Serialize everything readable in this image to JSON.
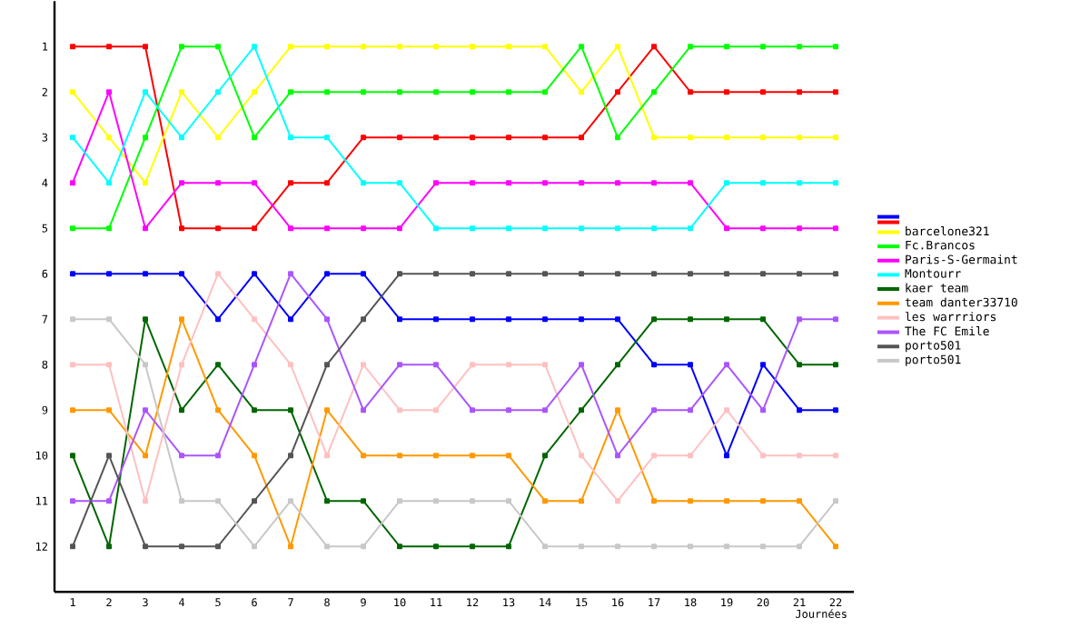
{
  "chart_data": {
    "type": "line",
    "xlabel": "Journées",
    "x": [
      1,
      2,
      3,
      4,
      5,
      6,
      7,
      8,
      9,
      10,
      11,
      12,
      13,
      14,
      15,
      16,
      17,
      18,
      19,
      20,
      21,
      22
    ],
    "xlim": [
      0.5,
      22.5
    ],
    "xticks": [
      1,
      2,
      3,
      4,
      5,
      6,
      7,
      8,
      9,
      10,
      11,
      12,
      13,
      14,
      15,
      16,
      17,
      18,
      19,
      20,
      21,
      22
    ],
    "ylim": [
      13,
      0
    ],
    "yticks": [
      1,
      2,
      3,
      4,
      5,
      6,
      7,
      8,
      9,
      10,
      11,
      12
    ],
    "legend": "right",
    "marker": "square",
    "line_style": "solid",
    "series": [
      {
        "color": "#0000ff",
        "values": [
          6,
          6,
          6,
          6,
          7,
          6,
          7,
          6,
          6,
          7,
          7,
          7,
          7,
          7,
          7,
          7,
          8,
          8,
          10,
          8,
          9,
          9
        ]
      },
      {
        "color": "#ff0000",
        "values": [
          1,
          1,
          1,
          5,
          5,
          5,
          4,
          4,
          3,
          3,
          3,
          3,
          3,
          3,
          3,
          2,
          1,
          2,
          2,
          2,
          2,
          2
        ]
      },
      {
        "name": "barcelone321",
        "color": "#ffff00",
        "values": [
          2,
          3,
          4,
          2,
          3,
          2,
          1,
          1,
          1,
          1,
          1,
          1,
          1,
          1,
          2,
          1,
          3,
          3,
          3,
          3,
          3,
          3
        ]
      },
      {
        "name": "Fc.Brancos",
        "color": "#00ff00",
        "values": [
          5,
          5,
          3,
          1,
          1,
          3,
          2,
          2,
          2,
          2,
          2,
          2,
          2,
          2,
          1,
          3,
          2,
          1,
          1,
          1,
          1,
          1
        ]
      },
      {
        "name": "Paris-S-Germaint",
        "color": "#ff00ff",
        "values": [
          4,
          2,
          5,
          4,
          4,
          4,
          5,
          5,
          5,
          5,
          4,
          4,
          4,
          4,
          4,
          4,
          4,
          4,
          5,
          5,
          5,
          5
        ]
      },
      {
        "name": "Montourr",
        "color": "#00ffff",
        "values": [
          3,
          4,
          2,
          3,
          2,
          1,
          3,
          3,
          4,
          4,
          5,
          5,
          5,
          5,
          5,
          5,
          5,
          5,
          4,
          4,
          4,
          4
        ]
      },
      {
        "name": "kaer team",
        "color": "#006600",
        "values": [
          10,
          12,
          7,
          9,
          8,
          9,
          9,
          11,
          11,
          12,
          12,
          12,
          12,
          10,
          9,
          8,
          7,
          7,
          7,
          7,
          8,
          8
        ]
      },
      {
        "name": "team danter33710",
        "color": "#ff9900",
        "values": [
          9,
          9,
          10,
          7,
          9,
          10,
          12,
          9,
          10,
          10,
          10,
          10,
          10,
          11,
          11,
          9,
          11,
          11,
          11,
          11,
          11,
          12
        ]
      },
      {
        "name": "les warrriors",
        "color": "#ffc0c0",
        "values": [
          8,
          8,
          11,
          8,
          6,
          7,
          8,
          10,
          8,
          9,
          9,
          8,
          8,
          8,
          10,
          11,
          10,
          10,
          9,
          10,
          10,
          10
        ]
      },
      {
        "name": "The FC Emile",
        "color": "#aa55ff",
        "values": [
          11,
          11,
          9,
          10,
          10,
          8,
          6,
          7,
          9,
          8,
          8,
          9,
          9,
          9,
          8,
          10,
          9,
          9,
          8,
          9,
          7,
          7
        ]
      },
      {
        "name": "porto501",
        "color": "#555555",
        "values": [
          12,
          10,
          12,
          12,
          12,
          11,
          10,
          8,
          7,
          6,
          6,
          6,
          6,
          6,
          6,
          6,
          6,
          6,
          6,
          6,
          6,
          6
        ]
      },
      {
        "name": "porto501",
        "color": "#c8c8c8",
        "values": [
          7,
          7,
          8,
          11,
          11,
          12,
          11,
          12,
          12,
          11,
          11,
          11,
          11,
          12,
          12,
          12,
          12,
          12,
          12,
          12,
          12,
          11
        ]
      }
    ]
  }
}
